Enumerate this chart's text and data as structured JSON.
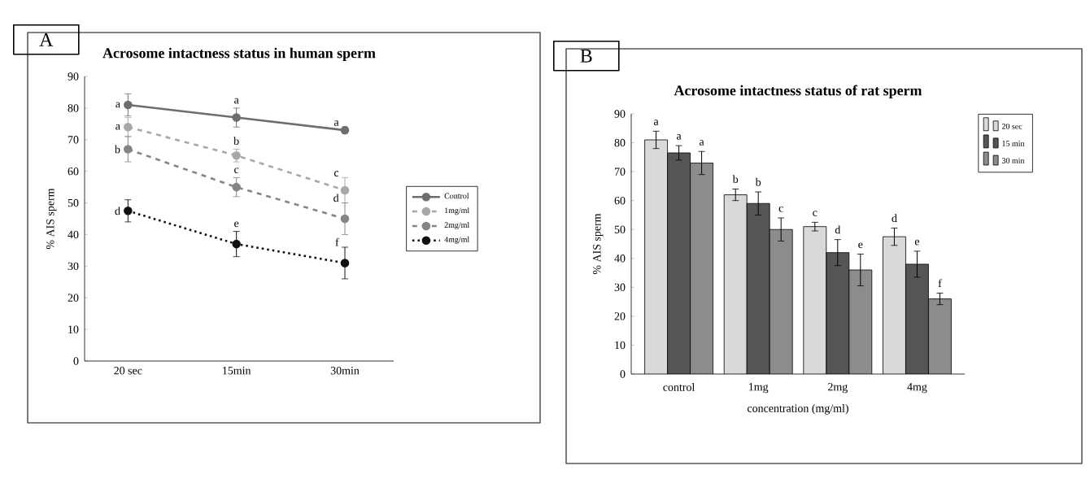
{
  "chart_data": [
    {
      "type": "line",
      "title": "Acrosome intactness status in human sperm",
      "ylabel": "% AIS sperm",
      "categories": [
        "20 sec",
        "15min",
        "30min"
      ],
      "series": [
        {
          "name": "Control",
          "color": "#6e6e6e",
          "line_style": "solid",
          "values": [
            81,
            77,
            73
          ],
          "errors": [
            3.5,
            3,
            1
          ]
        },
        {
          "name": "1mg/ml",
          "color": "#a8a8a8",
          "line_style": "dashed",
          "values": [
            74,
            65,
            54
          ],
          "errors": [
            3,
            2,
            4
          ]
        },
        {
          "name": "2mg/ml",
          "color": "#858585",
          "line_style": "dashed",
          "values": [
            67,
            55,
            45
          ],
          "errors": [
            4,
            3,
            5
          ]
        },
        {
          "name": "4mg/ml",
          "color": "#111111",
          "line_style": "dotted",
          "values": [
            47.5,
            37,
            31
          ],
          "errors": [
            3.5,
            4,
            5
          ]
        }
      ],
      "marker": "circle",
      "legend": "right",
      "ylim": [
        0,
        90
      ],
      "yticks": [
        0,
        10,
        20,
        30,
        40,
        50,
        60,
        70,
        80,
        90
      ],
      "annotations": [
        "A",
        "a",
        "a",
        "a",
        "a",
        "b",
        "c",
        "b",
        "c",
        "d",
        "d",
        "e",
        "f"
      ]
    },
    {
      "type": "bar",
      "title": "Acrosome intactness status of rat sperm",
      "ylabel": "% AIS sperm",
      "xlabel": "concentration (mg/ml)",
      "categories": [
        "control",
        "1mg",
        "2mg",
        "4mg"
      ],
      "series": [
        {
          "name": "20 sec",
          "color": "#d9d9d9",
          "values": [
            81,
            62,
            51,
            47.5
          ],
          "errors": [
            3,
            2,
            1.5,
            3
          ]
        },
        {
          "name": "15 min",
          "color": "#555555",
          "values": [
            76.5,
            59,
            42,
            38
          ],
          "errors": [
            2.5,
            4,
            4.5,
            4.5
          ]
        },
        {
          "name": "30 min",
          "color": "#8c8c8c",
          "values": [
            73,
            50,
            36,
            26
          ],
          "errors": [
            4,
            4,
            5.5,
            2
          ]
        }
      ],
      "legend": "top right",
      "ylim": [
        0,
        90
      ],
      "yticks": [
        0,
        10,
        20,
        30,
        40,
        50,
        60,
        70,
        80,
        90
      ],
      "annotations": [
        "B",
        "a",
        "b",
        "c",
        "d",
        "a",
        "b",
        "d",
        "e",
        "a",
        "c",
        "e",
        "f"
      ]
    }
  ]
}
